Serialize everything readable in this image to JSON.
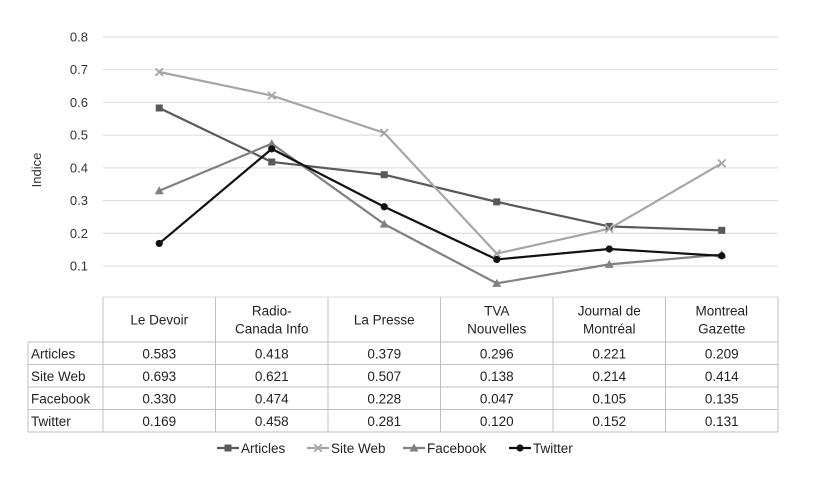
{
  "chart_data": {
    "type": "line",
    "ylabel": "Indice",
    "ylim": [
      0.1,
      0.8
    ],
    "yticks": [
      "0.8",
      "0.7",
      "0.6",
      "0.5",
      "0.4",
      "0.3",
      "0.2",
      "0.1"
    ],
    "ytick_values": [
      0.8,
      0.7,
      0.6,
      0.5,
      0.4,
      0.3,
      0.2,
      0.1
    ],
    "grid": true,
    "legend_position": "bottom",
    "categories": [
      [
        "Le Devoir"
      ],
      [
        "Radio-",
        "Canada Info"
      ],
      [
        "La Presse"
      ],
      [
        "TVA",
        "Nouvelles"
      ],
      [
        "Journal de",
        "Montréal"
      ],
      [
        "Montreal",
        "Gazette"
      ]
    ],
    "series": [
      {
        "name": "Articles",
        "values": [
          0.583,
          0.418,
          0.379,
          0.296,
          0.221,
          0.209
        ],
        "labels": [
          "0.583",
          "0.418",
          "0.379",
          "0.296",
          "0.221",
          "0.209"
        ],
        "color": "#595959",
        "marker": "square"
      },
      {
        "name": "Site Web",
        "values": [
          0.693,
          0.621,
          0.507,
          0.138,
          0.214,
          0.414
        ],
        "labels": [
          "0.693",
          "0.621",
          "0.507",
          "0.138",
          "0.214",
          "0.414"
        ],
        "color": "#a6a6a6",
        "marker": "x"
      },
      {
        "name": "Facebook",
        "values": [
          0.33,
          0.474,
          0.228,
          0.047,
          0.105,
          0.135
        ],
        "labels": [
          "0.330",
          "0.474",
          "0.228",
          "0.047",
          "0.105",
          "0.135"
        ],
        "color": "#808080",
        "marker": "triangle"
      },
      {
        "name": "Twitter",
        "values": [
          0.169,
          0.458,
          0.281,
          0.12,
          0.152,
          0.131
        ],
        "labels": [
          "0.169",
          "0.458",
          "0.281",
          "0.120",
          "0.152",
          "0.131"
        ],
        "color": "#111111",
        "marker": "circle"
      }
    ]
  }
}
